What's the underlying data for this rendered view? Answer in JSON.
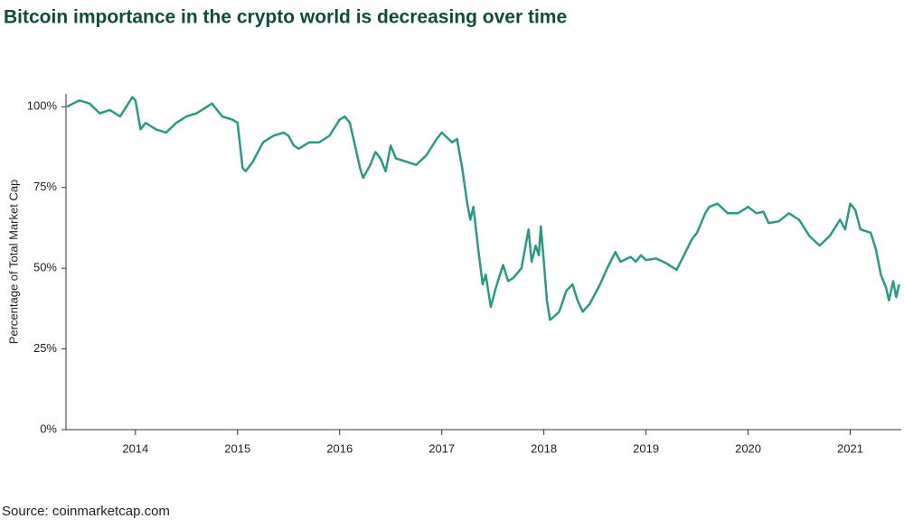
{
  "chart_data": {
    "type": "line",
    "title": "Bitcoin importance in the crypto world is decreasing over time",
    "y_label": "Percentage of Total Market Cap",
    "source": "Source: coinmarketcap.com",
    "color": "#2a9a84",
    "xlim": [
      2013.32,
      2021.5
    ],
    "xticks": [
      2014,
      2015,
      2016,
      2017,
      2018,
      2019,
      2020,
      2021
    ],
    "ylim": [
      0,
      104
    ],
    "yticks": [
      {
        "value": 0,
        "label": "0%"
      },
      {
        "value": 25,
        "label": "25%"
      },
      {
        "value": 50,
        "label": "50%"
      },
      {
        "value": 75,
        "label": "75%"
      },
      {
        "value": 100,
        "label": "100%"
      }
    ],
    "x": [
      2013.33,
      2013.45,
      2013.55,
      2013.65,
      2013.75,
      2013.85,
      2013.97,
      2014.0,
      2014.05,
      2014.1,
      2014.2,
      2014.3,
      2014.4,
      2014.5,
      2014.6,
      2014.7,
      2014.75,
      2014.85,
      2014.95,
      2015.0,
      2015.05,
      2015.08,
      2015.15,
      2015.25,
      2015.35,
      2015.45,
      2015.5,
      2015.55,
      2015.6,
      2015.7,
      2015.8,
      2015.9,
      2016.0,
      2016.05,
      2016.1,
      2016.15,
      2016.2,
      2016.23,
      2016.3,
      2016.35,
      2016.4,
      2016.45,
      2016.5,
      2016.55,
      2016.65,
      2016.75,
      2016.85,
      2016.95,
      2017.0,
      2017.1,
      2017.15,
      2017.2,
      2017.25,
      2017.28,
      2017.31,
      2017.36,
      2017.4,
      2017.43,
      2017.48,
      2017.53,
      2017.6,
      2017.65,
      2017.7,
      2017.78,
      2017.85,
      2017.88,
      2017.92,
      2017.95,
      2017.97,
      2018.0,
      2018.03,
      2018.06,
      2018.1,
      2018.15,
      2018.22,
      2018.28,
      2018.33,
      2018.38,
      2018.45,
      2018.55,
      2018.62,
      2018.7,
      2018.75,
      2018.85,
      2018.9,
      2018.95,
      2019.0,
      2019.1,
      2019.2,
      2019.3,
      2019.38,
      2019.45,
      2019.5,
      2019.58,
      2019.62,
      2019.7,
      2019.8,
      2019.9,
      2020.0,
      2020.08,
      2020.15,
      2020.2,
      2020.3,
      2020.4,
      2020.5,
      2020.6,
      2020.7,
      2020.8,
      2020.9,
      2020.95,
      2021.0,
      2021.05,
      2021.1,
      2021.2,
      2021.25,
      2021.3,
      2021.35,
      2021.38,
      2021.42,
      2021.45,
      2021.48
    ],
    "values": [
      100,
      102,
      101,
      98,
      99,
      97,
      103,
      102,
      93,
      95,
      93,
      92,
      95,
      97,
      98,
      100,
      101,
      97,
      96,
      95,
      81,
      80,
      83,
      89,
      91,
      92,
      91,
      88,
      87,
      89,
      89,
      91,
      96,
      97,
      95,
      88,
      81,
      78,
      82,
      86,
      84,
      80,
      88,
      84,
      83,
      82,
      85,
      90,
      92,
      89,
      90,
      81,
      70,
      65,
      69,
      55,
      45,
      48,
      38,
      44,
      51,
      46,
      47,
      50,
      62,
      52,
      57,
      54,
      63,
      52,
      40,
      34,
      35,
      36.5,
      43,
      45,
      40,
      36.5,
      39,
      45,
      50,
      55,
      52,
      53.5,
      52,
      54,
      52.5,
      53,
      51.5,
      49.5,
      54.5,
      59,
      61,
      67,
      69,
      70,
      67,
      67,
      69,
      67,
      67.5,
      64,
      64.5,
      67,
      65,
      60,
      57,
      60,
      65,
      62,
      70,
      68,
      62,
      61,
      56,
      48,
      44,
      40,
      46,
      41,
      45
    ]
  }
}
